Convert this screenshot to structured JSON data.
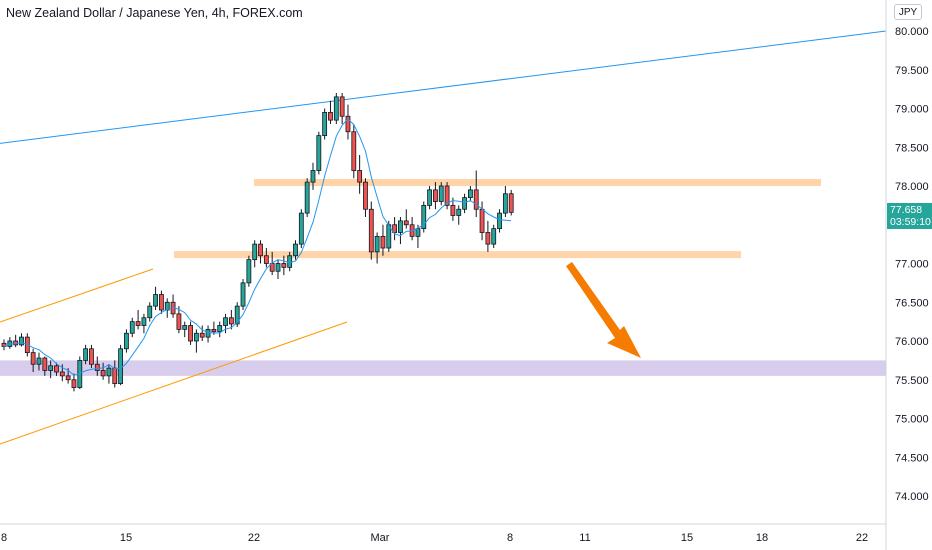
{
  "header": {
    "title": "New Zealand Dollar / Japanese Yen, 4h, FOREX.com",
    "currency": "JPY"
  },
  "price_tag": {
    "price": "77.658",
    "countdown": "03:59:10",
    "color": "#26a69a"
  },
  "colors": {
    "up": "#26a69a",
    "down": "#ef5350",
    "candle_outline": "#131722",
    "ma": "#2196f3",
    "trendline": "#2196f3",
    "channel": "#ff9800",
    "resistance_zone": "#ffcc99",
    "target_zone": "#d1c4e9",
    "arrow": "#f57c00"
  },
  "chart_data": {
    "type": "candlestick",
    "title": "New Zealand Dollar / Japanese Yen, 4h, FOREX.com",
    "ylim": [
      73.6,
      80.2
    ],
    "y_ticks": [
      "80.000",
      "79.500",
      "79.000",
      "78.500",
      "78.000",
      "77.500",
      "77.000",
      "76.500",
      "76.000",
      "75.500",
      "75.000",
      "74.500",
      "74.000"
    ],
    "x_ticks": [
      "8",
      "15",
      "22",
      "Mar",
      "8",
      "11",
      "15",
      "18",
      "22"
    ],
    "last_price": 77.658,
    "candles": [
      [
        75.97,
        76.02,
        75.88,
        75.93
      ],
      [
        75.93,
        76.05,
        75.9,
        76.0
      ],
      [
        76.0,
        76.08,
        75.92,
        75.95
      ],
      [
        75.95,
        76.1,
        75.93,
        76.05
      ],
      [
        76.05,
        76.1,
        75.8,
        75.85
      ],
      [
        75.85,
        75.9,
        75.6,
        75.7
      ],
      [
        75.7,
        75.85,
        75.62,
        75.78
      ],
      [
        75.78,
        75.8,
        75.55,
        75.62
      ],
      [
        75.62,
        75.75,
        75.52,
        75.68
      ],
      [
        75.68,
        75.72,
        75.55,
        75.6
      ],
      [
        75.6,
        75.7,
        75.48,
        75.55
      ],
      [
        75.55,
        75.65,
        75.45,
        75.5
      ],
      [
        75.5,
        75.58,
        75.35,
        75.4
      ],
      [
        75.4,
        75.8,
        75.38,
        75.75
      ],
      [
        75.75,
        75.95,
        75.7,
        75.9
      ],
      [
        75.9,
        75.95,
        75.65,
        75.7
      ],
      [
        75.7,
        75.8,
        75.55,
        75.62
      ],
      [
        75.62,
        75.72,
        75.5,
        75.55
      ],
      [
        75.55,
        75.7,
        75.45,
        75.65
      ],
      [
        75.65,
        75.75,
        75.4,
        75.45
      ],
      [
        75.45,
        75.95,
        75.43,
        75.9
      ],
      [
        75.9,
        76.15,
        75.85,
        76.1
      ],
      [
        76.1,
        76.3,
        76.05,
        76.25
      ],
      [
        76.25,
        76.4,
        76.15,
        76.2
      ],
      [
        76.2,
        76.35,
        76.1,
        76.3
      ],
      [
        76.3,
        76.5,
        76.25,
        76.45
      ],
      [
        76.45,
        76.7,
        76.4,
        76.6
      ],
      [
        76.6,
        76.65,
        76.35,
        76.4
      ],
      [
        76.4,
        76.55,
        76.3,
        76.5
      ],
      [
        76.5,
        76.6,
        76.3,
        76.35
      ],
      [
        76.35,
        76.45,
        76.1,
        76.15
      ],
      [
        76.15,
        76.25,
        76.05,
        76.2
      ],
      [
        76.2,
        76.25,
        75.95,
        76.0
      ],
      [
        76.0,
        76.15,
        75.85,
        76.1
      ],
      [
        76.1,
        76.2,
        76.0,
        76.05
      ],
      [
        76.05,
        76.2,
        75.98,
        76.15
      ],
      [
        76.15,
        76.25,
        76.08,
        76.12
      ],
      [
        76.12,
        76.25,
        76.05,
        76.2
      ],
      [
        76.2,
        76.35,
        76.1,
        76.3
      ],
      [
        76.3,
        76.4,
        76.15,
        76.22
      ],
      [
        76.22,
        76.5,
        76.18,
        76.45
      ],
      [
        76.45,
        76.8,
        76.4,
        76.75
      ],
      [
        76.75,
        77.1,
        76.7,
        77.05
      ],
      [
        77.05,
        77.3,
        76.95,
        77.25
      ],
      [
        77.25,
        77.3,
        77.0,
        77.1
      ],
      [
        77.1,
        77.2,
        76.95,
        77.0
      ],
      [
        77.0,
        77.15,
        76.85,
        76.9
      ],
      [
        76.9,
        77.05,
        76.8,
        77.0
      ],
      [
        77.0,
        77.1,
        76.85,
        76.95
      ],
      [
        76.95,
        77.15,
        76.9,
        77.1
      ],
      [
        77.1,
        77.3,
        77.05,
        77.25
      ],
      [
        77.25,
        77.7,
        77.2,
        77.65
      ],
      [
        77.65,
        78.1,
        77.6,
        78.05
      ],
      [
        78.05,
        78.3,
        77.95,
        78.2
      ],
      [
        78.2,
        78.7,
        78.15,
        78.65
      ],
      [
        78.65,
        79.0,
        78.6,
        78.95
      ],
      [
        78.95,
        79.1,
        78.8,
        78.85
      ],
      [
        78.85,
        79.2,
        78.8,
        79.15
      ],
      [
        79.15,
        79.2,
        78.8,
        78.9
      ],
      [
        78.9,
        79.05,
        78.6,
        78.7
      ],
      [
        78.7,
        78.8,
        78.1,
        78.2
      ],
      [
        78.2,
        78.4,
        77.9,
        78.05
      ],
      [
        78.05,
        78.1,
        77.6,
        77.7
      ],
      [
        77.7,
        77.8,
        77.05,
        77.15
      ],
      [
        77.15,
        77.4,
        77.0,
        77.35
      ],
      [
        77.35,
        77.5,
        77.1,
        77.2
      ],
      [
        77.2,
        77.55,
        77.15,
        77.5
      ],
      [
        77.5,
        77.6,
        77.3,
        77.4
      ],
      [
        77.4,
        77.6,
        77.25,
        77.55
      ],
      [
        77.55,
        77.7,
        77.45,
        77.5
      ],
      [
        77.5,
        77.6,
        77.3,
        77.35
      ],
      [
        77.35,
        77.5,
        77.2,
        77.45
      ],
      [
        77.45,
        77.8,
        77.4,
        77.75
      ],
      [
        77.75,
        78.0,
        77.7,
        77.95
      ],
      [
        77.95,
        78.05,
        77.7,
        77.8
      ],
      [
        77.8,
        78.05,
        77.75,
        78.0
      ],
      [
        78.0,
        78.05,
        77.7,
        77.75
      ],
      [
        77.75,
        77.85,
        77.55,
        77.62
      ],
      [
        77.62,
        77.75,
        77.5,
        77.7
      ],
      [
        77.7,
        77.9,
        77.65,
        77.85
      ],
      [
        77.85,
        78.0,
        77.8,
        77.95
      ],
      [
        77.95,
        78.2,
        77.6,
        77.7
      ],
      [
        77.7,
        77.8,
        77.3,
        77.4
      ],
      [
        77.4,
        77.55,
        77.15,
        77.25
      ],
      [
        77.25,
        77.5,
        77.2,
        77.45
      ],
      [
        77.45,
        77.7,
        77.4,
        77.65
      ],
      [
        77.65,
        78.0,
        77.6,
        77.9
      ],
      [
        77.9,
        77.95,
        77.62,
        77.66
      ]
    ],
    "ma": "smoothed moving average",
    "annotations": [
      "resistance zone ~78.05",
      "support zone ~77.12",
      "target zone 75.55-75.75",
      "ascending channel",
      "upper trendline",
      "down arrow"
    ]
  }
}
